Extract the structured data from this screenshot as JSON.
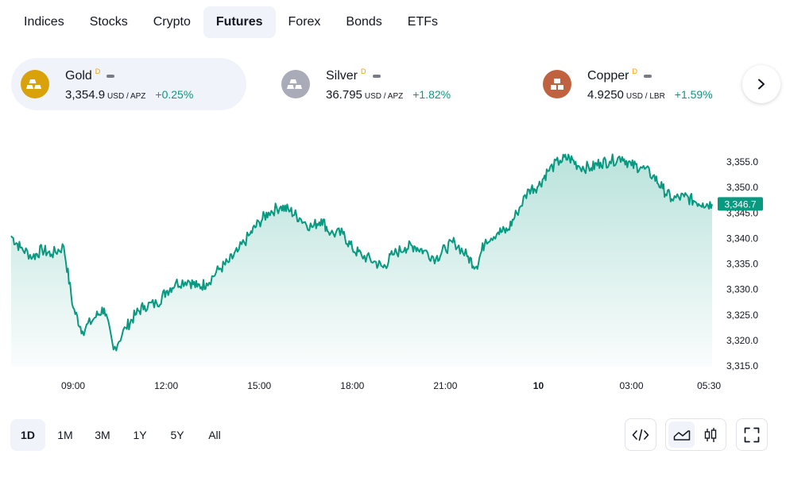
{
  "tabs": [
    "Indices",
    "Stocks",
    "Crypto",
    "Futures",
    "Forex",
    "Bonds",
    "ETFs"
  ],
  "active_tab": "Futures",
  "symbols": [
    {
      "name": "Gold",
      "flag": "D",
      "price": "3,354.9",
      "unit": "USD / APZ",
      "change": "+0.25%",
      "icon": "gold-bars-icon",
      "color": "#d9a20a"
    },
    {
      "name": "Silver",
      "flag": "D",
      "price": "36.795",
      "unit": "USD / APZ",
      "change": "+1.82%",
      "icon": "silver-bars-icon",
      "color": "#a9acb8"
    },
    {
      "name": "Copper",
      "flag": "D",
      "price": "4.9250",
      "unit": "USD / LBR",
      "change": "+1.59%",
      "icon": "copper-bars-icon",
      "color": "#c0623f"
    }
  ],
  "nav": {
    "next_icon": "chevron-right-icon"
  },
  "chart_data": {
    "type": "area",
    "x_ticks": [
      "09:00",
      "12:00",
      "15:00",
      "18:00",
      "21:00",
      "10",
      "03:00",
      "05:30"
    ],
    "y_ticks": [
      "3,355.0",
      "3,350.0",
      "3,345.0",
      "3,340.0",
      "3,335.0",
      "3,330.0",
      "3,325.0",
      "3,320.0",
      "3,315.0"
    ],
    "ylim": [
      3315,
      3355
    ],
    "series": [
      {
        "x_hours": [
          7.0,
          7.3,
          7.7,
          8.0,
          8.3,
          8.7,
          9.0,
          9.3,
          9.7,
          10.0,
          10.3,
          10.7,
          11.0,
          11.3,
          11.7,
          12.0,
          12.3,
          12.7,
          13.0,
          13.3,
          13.7,
          14.0,
          14.3,
          14.7,
          15.0,
          15.3,
          15.7,
          16.0,
          16.3,
          16.7,
          17.0,
          17.3,
          17.7,
          18.0,
          18.3,
          18.7,
          19.0,
          19.3,
          19.7,
          20.0,
          20.3,
          20.7,
          21.0,
          21.3,
          21.7,
          22.0,
          22.3,
          22.7,
          23.0,
          23.3,
          23.7,
          24.0,
          24.3,
          24.7,
          25.0,
          25.3,
          25.7,
          26.0,
          26.3,
          26.7,
          27.0,
          27.3,
          27.7,
          28.0,
          28.3,
          28.7,
          29.0,
          29.3,
          29.6
        ],
        "values": [
          3340.5,
          3338.2,
          3336.4,
          3337.8,
          3336.9,
          3338.4,
          3326.4,
          3321.8,
          3324.5,
          3326.3,
          3318.2,
          3322.5,
          3325.0,
          3326.8,
          3327.2,
          3329.6,
          3331.2,
          3331.8,
          3330.5,
          3331.2,
          3333.9,
          3335.3,
          3337.4,
          3340.8,
          3343.2,
          3345.1,
          3346.3,
          3345.4,
          3344.0,
          3342.2,
          3343.8,
          3341.0,
          3340.9,
          3338.0,
          3336.7,
          3335.5,
          3334.3,
          3336.8,
          3338.2,
          3338.5,
          3337.6,
          3336.1,
          3338.0,
          3339.3,
          3336.5,
          3334.5,
          3339.8,
          3341.2,
          3341.5,
          3345.0,
          3349.6,
          3350.3,
          3353.2,
          3355.3,
          3355.8,
          3354.2,
          3353.8,
          3354.9,
          3355.1,
          3356.0,
          3354.3,
          3354.0,
          3352.3,
          3349.8,
          3347.7,
          3348.2,
          3347.4,
          3346.9,
          3346.7
        ]
      }
    ],
    "last_price_label": "3,346.7",
    "line_color": "#089981"
  },
  "ranges": [
    "1D",
    "1M",
    "3M",
    "1Y",
    "5Y",
    "All"
  ],
  "active_range": "1D",
  "tools": {
    "embed_icon": "code-embed-icon",
    "area_icon": "area-chart-icon",
    "candles_icon": "candlestick-icon",
    "fullscreen_icon": "fullscreen-icon"
  }
}
